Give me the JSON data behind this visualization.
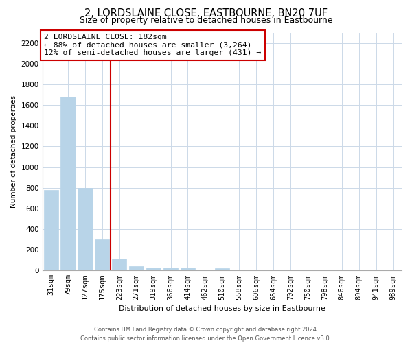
{
  "title": "2, LORDSLAINE CLOSE, EASTBOURNE, BN20 7UF",
  "subtitle": "Size of property relative to detached houses in Eastbourne",
  "xlabel": "Distribution of detached houses by size in Eastbourne",
  "ylabel": "Number of detached properties",
  "bar_color": "#b8d4e8",
  "annotation_line_color": "#cc0000",
  "categories": [
    "31sqm",
    "79sqm",
    "127sqm",
    "175sqm",
    "223sqm",
    "271sqm",
    "319sqm",
    "366sqm",
    "414sqm",
    "462sqm",
    "510sqm",
    "558sqm",
    "606sqm",
    "654sqm",
    "702sqm",
    "750sqm",
    "798sqm",
    "846sqm",
    "894sqm",
    "941sqm",
    "989sqm"
  ],
  "values": [
    780,
    1680,
    800,
    300,
    115,
    45,
    30,
    30,
    30,
    0,
    20,
    0,
    0,
    0,
    0,
    0,
    0,
    0,
    0,
    0,
    0
  ],
  "ylim": [
    0,
    2300
  ],
  "yticks": [
    0,
    200,
    400,
    600,
    800,
    1000,
    1200,
    1400,
    1600,
    1800,
    2000,
    2200
  ],
  "red_line_index": 3,
  "annotation_box_text_line1": "2 LORDSLAINE CLOSE: 182sqm",
  "annotation_box_text_line2": "← 88% of detached houses are smaller (3,264)",
  "annotation_box_text_line3": "12% of semi-detached houses are larger (431) →",
  "footer_line1": "Contains HM Land Registry data © Crown copyright and database right 2024.",
  "footer_line2": "Contains public sector information licensed under the Open Government Licence v3.0.",
  "background_color": "#ffffff",
  "grid_color": "#ccd9e8",
  "title_fontsize": 10.5,
  "subtitle_fontsize": 9,
  "ylabel_fontsize": 7.5,
  "xlabel_fontsize": 8,
  "tick_fontsize": 7.5,
  "annotation_fontsize": 8.2,
  "footer_fontsize": 6.0
}
